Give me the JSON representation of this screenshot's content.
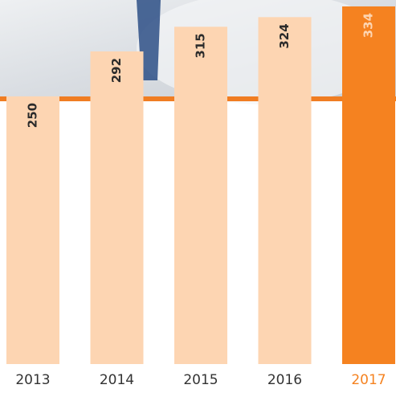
{
  "chart_data": {
    "type": "bar",
    "categories": [
      "2013",
      "2014",
      "2015",
      "2016",
      "2017"
    ],
    "values": [
      250,
      292,
      315,
      324,
      334
    ],
    "colors": [
      "#fdd5b2",
      "#fdd5b2",
      "#fdd5b2",
      "#fdd5b2",
      "#f58220"
    ],
    "value_label_colors": [
      "#2b2b2b",
      "#2b2b2b",
      "#2b2b2b",
      "#2b2b2b",
      "#fdd5b2"
    ],
    "category_label_colors": [
      "#333333",
      "#333333",
      "#333333",
      "#333333",
      "#f58220"
    ],
    "ylim": [
      0,
      340
    ]
  }
}
